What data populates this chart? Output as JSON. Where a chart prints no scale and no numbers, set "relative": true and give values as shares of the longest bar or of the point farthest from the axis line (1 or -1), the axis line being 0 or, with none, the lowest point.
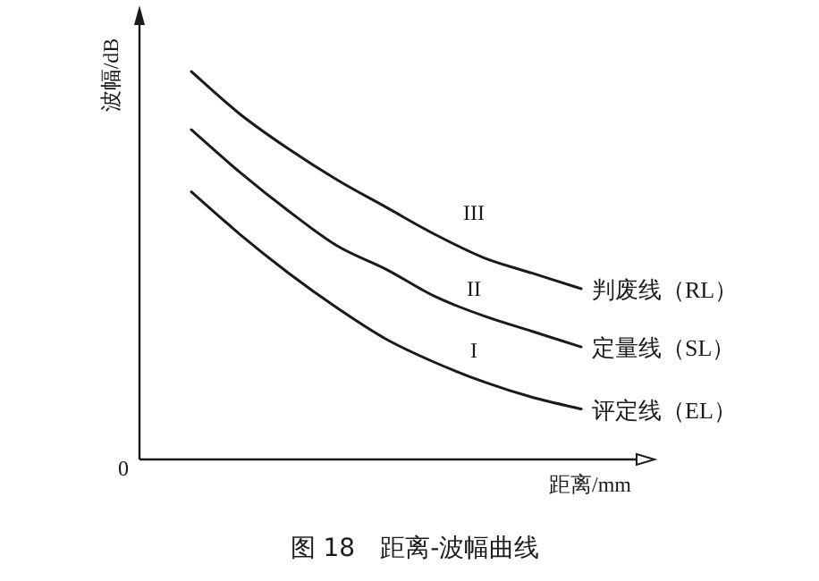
{
  "chart_data": {
    "type": "line",
    "title": "图 18　距离-波幅曲线",
    "xlabel": "距离/mm",
    "ylabel": "波幅/dB",
    "relative": true,
    "categories": [
      null,
      null,
      null,
      null,
      null,
      null,
      null,
      null,
      null
    ],
    "series": [
      {
        "name": "判废线（RL）",
        "color": "#1a1a1a",
        "values": [
          1.0,
          0.89,
          0.8,
          0.72,
          0.65,
          0.58,
          0.52,
          0.48,
          0.44
        ]
      },
      {
        "name": "定量线（SL）",
        "color": "#1a1a1a",
        "values": [
          0.85,
          0.74,
          0.64,
          0.55,
          0.49,
          0.42,
          0.37,
          0.33,
          0.29
        ]
      },
      {
        "name": "评定线（EL）",
        "color": "#1a1a1a",
        "values": [
          0.69,
          0.58,
          0.48,
          0.39,
          0.31,
          0.25,
          0.2,
          0.16,
          0.13
        ]
      }
    ],
    "annotations": [
      "III",
      "II",
      "I",
      "0"
    ]
  }
}
